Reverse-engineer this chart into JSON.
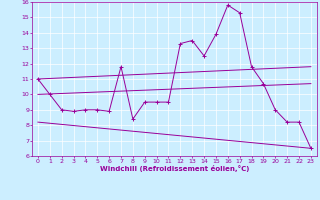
{
  "title": "",
  "xlabel": "Windchill (Refroidissement éolien,°C)",
  "xlim": [
    -0.5,
    23.5
  ],
  "ylim": [
    6,
    16
  ],
  "xticks": [
    0,
    1,
    2,
    3,
    4,
    5,
    6,
    7,
    8,
    9,
    10,
    11,
    12,
    13,
    14,
    15,
    16,
    17,
    18,
    19,
    20,
    21,
    22,
    23
  ],
  "yticks": [
    6,
    7,
    8,
    9,
    10,
    11,
    12,
    13,
    14,
    15,
    16
  ],
  "bg_color": "#cceeff",
  "line_color": "#990099",
  "lines": [
    {
      "x": [
        0,
        1,
        2,
        3,
        4,
        5,
        6,
        7,
        8,
        9,
        10,
        11,
        12,
        13,
        14,
        15,
        16,
        17,
        18,
        19,
        20,
        21,
        22,
        23
      ],
      "y": [
        11,
        10,
        9,
        8.9,
        9,
        9,
        8.9,
        11.8,
        8.4,
        9.5,
        9.5,
        9.5,
        13.3,
        13.5,
        12.5,
        13.9,
        15.8,
        15.3,
        11.8,
        10.7,
        9.0,
        8.2,
        8.2,
        6.5
      ],
      "marker": true
    },
    {
      "x": [
        0,
        23
      ],
      "y": [
        11,
        11.8
      ],
      "marker": false
    },
    {
      "x": [
        0,
        23
      ],
      "y": [
        10,
        10.7
      ],
      "marker": false
    },
    {
      "x": [
        0,
        23
      ],
      "y": [
        8.2,
        6.5
      ],
      "marker": false
    }
  ]
}
